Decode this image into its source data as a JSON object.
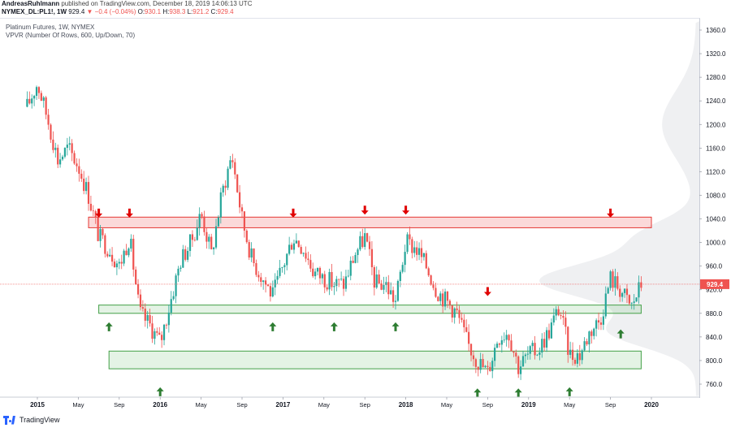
{
  "header": {
    "author": "AndreasRuhlmann",
    "published": "published on TradingView.com, December 18, 2019 14:06:13 UTC",
    "symbol": "NYMEX_DL:PL1!, 1W",
    "last": "929.4",
    "change": "▼ −0.4 (−0.04%)",
    "ohlc_o_label": "O:",
    "ohlc_o": "930.1",
    "ohlc_h_label": "H:",
    "ohlc_h": "938.3",
    "ohlc_l_label": "L:",
    "ohlc_l": "921.2",
    "ohlc_c_label": "C:",
    "ohlc_c": "929.4"
  },
  "legend": {
    "instrument": "Platinum Futures, 1W, NYMEX",
    "indicator": "VPVR (Number Of Rows, 600, Up/Down, 70)"
  },
  "footer": {
    "brand": "TradingView"
  },
  "colors": {
    "up": "#26a69a",
    "down": "#ef5350",
    "resistance_fill": "rgba(239,83,80,0.22)",
    "resistance_stroke": "#e53935",
    "support_fill": "rgba(76,175,80,0.15)",
    "support_stroke": "#43a047",
    "arrow_down": "#e00000",
    "arrow_up": "#2e7d32",
    "price_line": "#ef5350",
    "price_tag": "#ef5350"
  },
  "chart_data": {
    "type": "candlestick",
    "y_ticks": [
      760,
      800,
      840,
      880,
      920,
      960,
      1000,
      1040,
      1080,
      1120,
      1160,
      1200,
      1240,
      1280,
      1320,
      1360
    ],
    "x_ticks": [
      "2015",
      "May",
      "Sep",
      "2016",
      "May",
      "Sep",
      "2017",
      "May",
      "Sep",
      "2018",
      "May",
      "Sep",
      "2019",
      "May",
      "Sep",
      "2020"
    ],
    "x_tick_dates": [
      "2015-01",
      "2015-05",
      "2015-09",
      "2016-01",
      "2016-05",
      "2016-09",
      "2017-01",
      "2017-05",
      "2017-09",
      "2018-01",
      "2018-05",
      "2018-09",
      "2019-01",
      "2019-05",
      "2019-09",
      "2020-01"
    ],
    "ylim": [
      740,
      1375
    ],
    "last_price": 929.4,
    "zones": [
      {
        "type": "resistance",
        "start": "2015-06",
        "end": "2020-01",
        "low": 1025,
        "high": 1043
      },
      {
        "type": "support",
        "start": "2015-07",
        "end": "2019-12",
        "low": 880,
        "high": 894
      },
      {
        "type": "support",
        "start": "2015-08",
        "end": "2019-12",
        "low": 786,
        "high": 816
      }
    ],
    "arrows_down": [
      {
        "date": "2015-07",
        "price": 1045
      },
      {
        "date": "2015-10",
        "price": 1045
      },
      {
        "date": "2017-02",
        "price": 1045
      },
      {
        "date": "2017-09",
        "price": 1050
      },
      {
        "date": "2018-01",
        "price": 1050
      },
      {
        "date": "2018-09",
        "price": 912
      },
      {
        "date": "2019-09",
        "price": 1045
      }
    ],
    "arrows_up": [
      {
        "date": "2015-08",
        "price": 862
      },
      {
        "date": "2016-01",
        "price": 752
      },
      {
        "date": "2016-12",
        "price": 862
      },
      {
        "date": "2017-06",
        "price": 862
      },
      {
        "date": "2017-12",
        "price": 862
      },
      {
        "date": "2018-08",
        "price": 750
      },
      {
        "date": "2018-12",
        "price": 750
      },
      {
        "date": "2019-05",
        "price": 752
      },
      {
        "date": "2019-10",
        "price": 850
      }
    ],
    "series_waypoints": [
      [
        "2014-12",
        1230
      ],
      [
        "2015-01",
        1270
      ],
      [
        "2015-02",
        1210
      ],
      [
        "2015-03",
        1140
      ],
      [
        "2015-04",
        1160
      ],
      [
        "2015-05",
        1130
      ],
      [
        "2015-06",
        1080
      ],
      [
        "2015-07",
        1010
      ],
      [
        "2015-08",
        990
      ],
      [
        "2015-09",
        960
      ],
      [
        "2015-10",
        1010
      ],
      [
        "2015-11",
        880
      ],
      [
        "2015-12",
        860
      ],
      [
        "2016-01",
        830
      ],
      [
        "2016-02",
        900
      ],
      [
        "2016-03",
        970
      ],
      [
        "2016-04",
        1000
      ],
      [
        "2016-05",
        1050
      ],
      [
        "2016-06",
        980
      ],
      [
        "2016-07",
        1080
      ],
      [
        "2016-08",
        1150
      ],
      [
        "2016-09",
        1040
      ],
      [
        "2016-10",
        970
      ],
      [
        "2016-11",
        940
      ],
      [
        "2016-12",
        910
      ],
      [
        "2017-01",
        960
      ],
      [
        "2017-02",
        1010
      ],
      [
        "2017-03",
        990
      ],
      [
        "2017-04",
        950
      ],
      [
        "2017-05",
        940
      ],
      [
        "2017-06",
        930
      ],
      [
        "2017-07",
        930
      ],
      [
        "2017-08",
        980
      ],
      [
        "2017-09",
        1010
      ],
      [
        "2017-10",
        930
      ],
      [
        "2017-11",
        930
      ],
      [
        "2017-12",
        900
      ],
      [
        "2018-01",
        1000
      ],
      [
        "2018-02",
        990
      ],
      [
        "2018-03",
        960
      ],
      [
        "2018-04",
        920
      ],
      [
        "2018-05",
        900
      ],
      [
        "2018-06",
        880
      ],
      [
        "2018-07",
        830
      ],
      [
        "2018-08",
        800
      ],
      [
        "2018-09",
        780
      ],
      [
        "2018-10",
        840
      ],
      [
        "2018-11",
        850
      ],
      [
        "2018-12",
        790
      ],
      [
        "2019-01",
        810
      ],
      [
        "2019-02",
        820
      ],
      [
        "2019-03",
        850
      ],
      [
        "2019-04",
        890
      ],
      [
        "2019-05",
        810
      ],
      [
        "2019-06",
        810
      ],
      [
        "2019-07",
        850
      ],
      [
        "2019-08",
        870
      ],
      [
        "2019-09",
        940
      ],
      [
        "2019-10",
        920
      ],
      [
        "2019-11",
        890
      ],
      [
        "2019-12",
        929
      ]
    ]
  }
}
